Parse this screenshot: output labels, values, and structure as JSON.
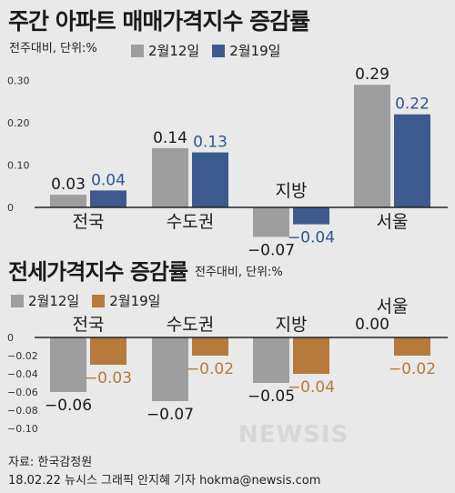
{
  "chart_data": [
    {
      "type": "bar",
      "title": "주간 아파트 매매가격지수 증감률",
      "unit_label": "전주대비, 단위:%",
      "categories": [
        "전국",
        "수도권",
        "지방",
        "서울"
      ],
      "series": [
        {
          "name": "2월12일",
          "values": [
            0.03,
            0.14,
            -0.07,
            0.29
          ],
          "labels": [
            "0.03",
            "0.14",
            "−0.07",
            "0.29"
          ]
        },
        {
          "name": "2월19일",
          "values": [
            0.04,
            0.13,
            -0.04,
            0.22
          ],
          "labels": [
            "0.04",
            "0.13",
            "−0.04",
            "0.22"
          ]
        }
      ],
      "yticks": [
        "0.30",
        "0.20",
        "0.10",
        "0"
      ],
      "ytick_values": [
        0.3,
        0.2,
        0.1,
        0
      ],
      "ylim": [
        -0.08,
        0.32
      ],
      "colors": [
        "#9e9e9e",
        "#3d5a8f"
      ],
      "label_colors": [
        "#1a1a1a",
        "#2f5597"
      ],
      "grid": false,
      "legend_position": "top"
    },
    {
      "type": "bar",
      "title": "전세가격지수 증감률",
      "unit_label": "전주대비, 단위:%",
      "categories": [
        "전국",
        "수도권",
        "지방",
        "서울"
      ],
      "series": [
        {
          "name": "2월12일",
          "values": [
            -0.06,
            -0.07,
            -0.05,
            0.0
          ],
          "labels": [
            "−0.06",
            "−0.07",
            "−0.05",
            "0.00"
          ]
        },
        {
          "name": "2월19일",
          "values": [
            -0.03,
            -0.02,
            -0.04,
            -0.02
          ],
          "labels": [
            "−0.03",
            "−0.02",
            "−0.04",
            "−0.02"
          ]
        }
      ],
      "yticks": [
        "0",
        "−0.02",
        "−0.04",
        "−0.06",
        "−0.08",
        "−0.10"
      ],
      "ytick_values": [
        0,
        -0.02,
        -0.04,
        -0.06,
        -0.08,
        -0.1
      ],
      "ylim": [
        -0.1,
        0
      ],
      "colors": [
        "#9e9e9e",
        "#b57a3c"
      ],
      "label_colors": [
        "#1a1a1a",
        "#b57a3c"
      ],
      "grid": false,
      "legend_position": "top-left"
    }
  ],
  "footer": {
    "source": "자료: 한국감정원",
    "credit": "18.02.22 뉴시스 그래픽 안지혜 기자 hokma@newsis.com"
  },
  "watermark": "NEWSIS"
}
